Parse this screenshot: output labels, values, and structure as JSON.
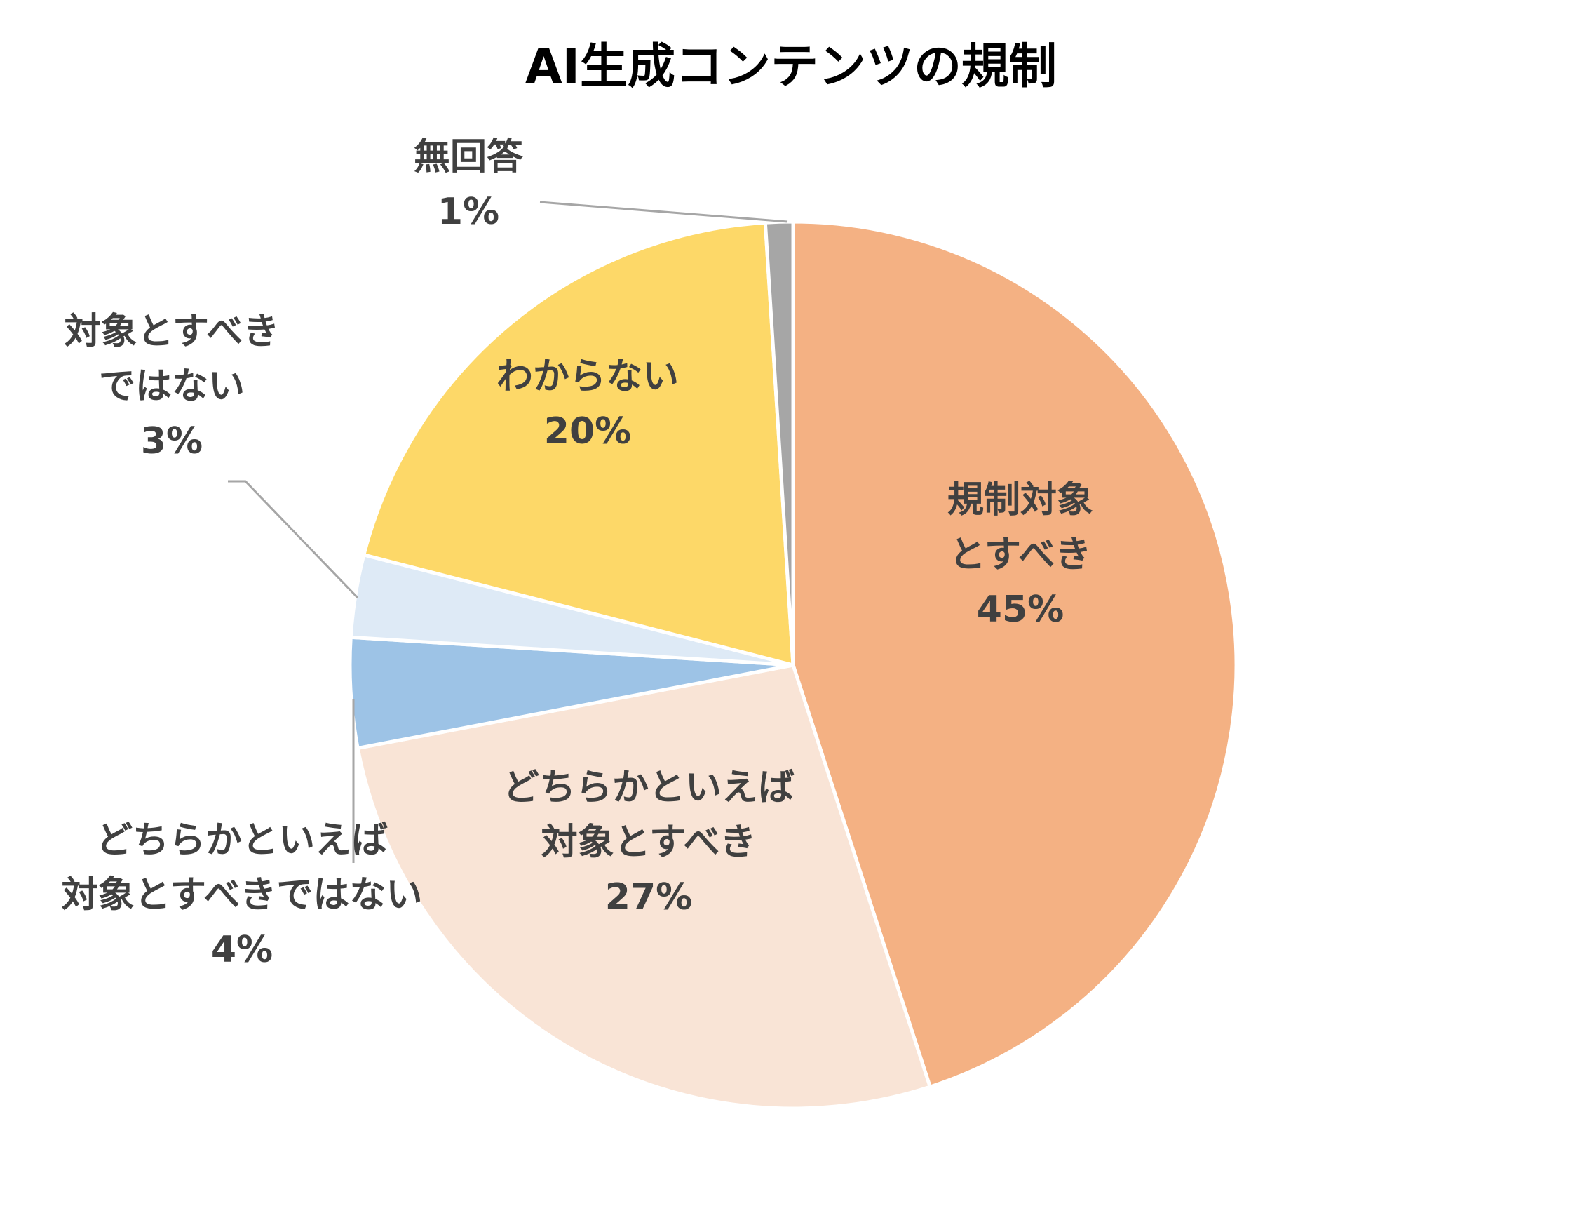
{
  "chart_data": {
    "type": "pie",
    "title": "AI生成コンテンツの規制",
    "slices": [
      {
        "label_lines": [
          "規制対象",
          "とすべき"
        ],
        "value": 45,
        "value_label": "45%",
        "color": "#F4B183"
      },
      {
        "label_lines": [
          "どちらかといえば",
          "対象とすべき"
        ],
        "value": 27,
        "value_label": "27%",
        "color": "#F9E4D6"
      },
      {
        "label_lines": [
          "どちらかといえば",
          "対象とすべきではない"
        ],
        "value": 4,
        "value_label": "4%",
        "color": "#9DC3E6"
      },
      {
        "label_lines": [
          "対象とすべき",
          "ではない"
        ],
        "value": 3,
        "value_label": "3%",
        "color": "#DEEAF6"
      },
      {
        "label_lines": [
          "わからない"
        ],
        "value": 20,
        "value_label": "20%",
        "color": "#FDD868"
      },
      {
        "label_lines": [
          "無回答"
        ],
        "value": 1,
        "value_label": "1%",
        "color": "#A6A6A6"
      }
    ],
    "start_angle": "12 o'clock",
    "direction": "clockwise",
    "slice_border_color": "#FFFFFF",
    "leader_line_color": "#A6A6A6",
    "label_color": "#404040",
    "legend": "none"
  }
}
